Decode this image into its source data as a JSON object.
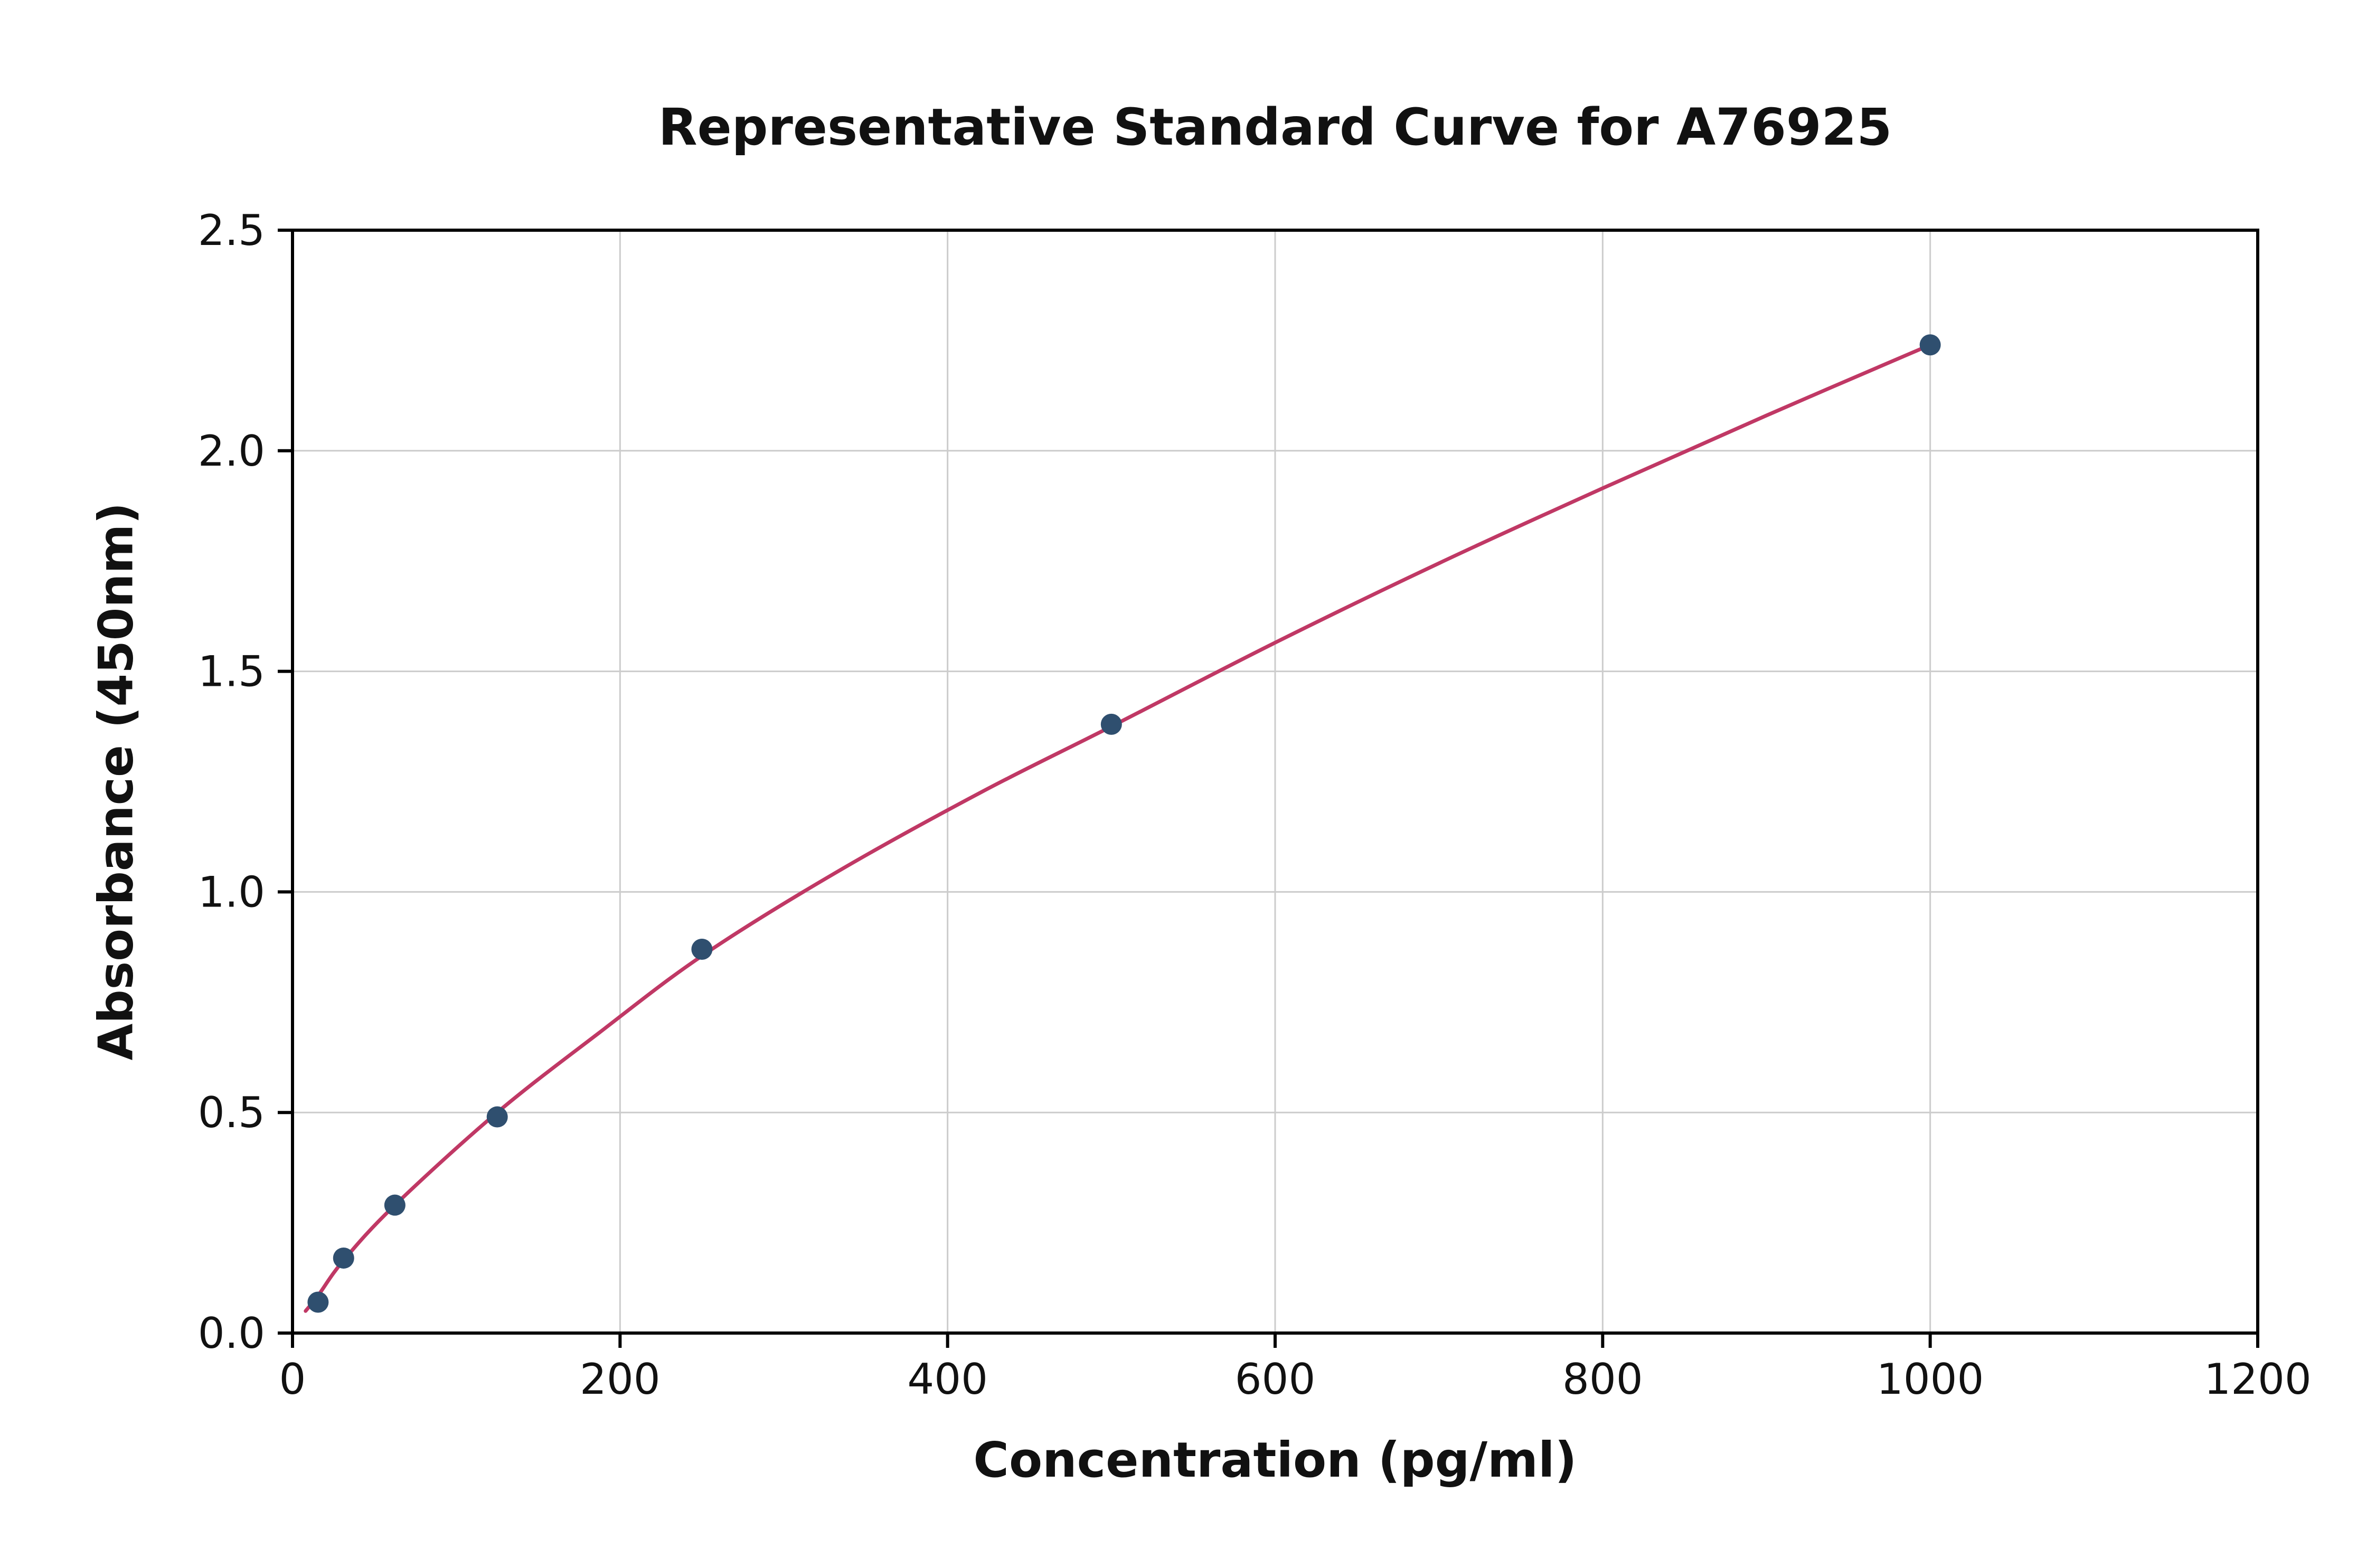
{
  "chart_data": {
    "type": "scatter",
    "title": "Representative Standard Curve for A76925",
    "xlabel": "Concentration (pg/ml)",
    "ylabel": "Absorbance (450nm)",
    "xlim": [
      0,
      1200
    ],
    "ylim": [
      0,
      2.5
    ],
    "x_ticks": [
      0,
      200,
      400,
      600,
      800,
      1000,
      1200
    ],
    "x_tick_labels": [
      "0",
      "200",
      "400",
      "600",
      "800",
      "1000",
      "1200"
    ],
    "y_ticks": [
      0.0,
      0.5,
      1.0,
      1.5,
      2.0,
      2.5
    ],
    "y_tick_labels": [
      "0.0",
      "0.5",
      "1.0",
      "1.5",
      "2.0",
      "2.5"
    ],
    "grid": true,
    "legend": "none",
    "points": [
      [
        15.6,
        0.07
      ],
      [
        31.2,
        0.17
      ],
      [
        62.5,
        0.29
      ],
      [
        125,
        0.49
      ],
      [
        250,
        0.87
      ],
      [
        500,
        1.38
      ],
      [
        1000,
        2.24
      ]
    ],
    "fit_curve": [
      [
        8,
        0.05
      ],
      [
        15.6,
        0.085
      ],
      [
        31.2,
        0.165
      ],
      [
        62.5,
        0.29
      ],
      [
        125,
        0.5
      ],
      [
        187,
        0.68
      ],
      [
        250,
        0.855
      ],
      [
        330,
        1.04
      ],
      [
        420,
        1.225
      ],
      [
        500,
        1.375
      ],
      [
        600,
        1.565
      ],
      [
        700,
        1.745
      ],
      [
        800,
        1.915
      ],
      [
        900,
        2.08
      ],
      [
        1000,
        2.24
      ]
    ],
    "colors": {
      "curve": "#c03865",
      "marker": "#2f4f6f",
      "grid": "#cccccc",
      "axis": "#000000",
      "background": "#ffffff"
    }
  }
}
